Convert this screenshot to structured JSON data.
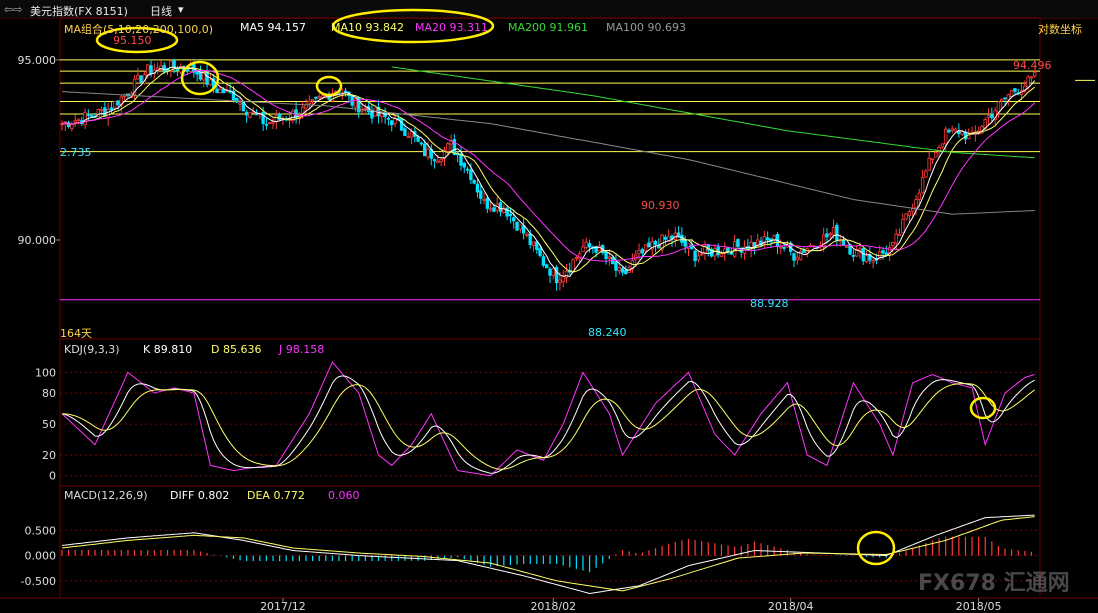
{
  "top_bar": {
    "symbol_title": "美元指数(FX 8151)",
    "period": "日线",
    "dropdown_glyph": "▾"
  },
  "main_panel": {
    "ma_label": "MA组合(5,10,20,200,100,0)",
    "ma5": "MA5 94.157",
    "ma10": "MA10 93.842",
    "ma20": "MA20 93.311",
    "ma200": "MA200 91.961",
    "ma100": "MA100 90.693",
    "log_scale_label": "对数坐标",
    "days_label": "164天",
    "annotations": {
      "high1": "95.150",
      "left_price": "2.735",
      "mid_high": "90.930",
      "low1": "88.240",
      "low2": "88.928",
      "last": "94.496"
    }
  },
  "kdj_panel": {
    "label": "KDJ(9,3,3)",
    "k": "K 89.810",
    "d": "D 85.636",
    "j": "J 98.158"
  },
  "macd_panel": {
    "label": "MACD(12,26,9)",
    "diff": "DIFF 0.802",
    "dea": "DEA 0.772",
    "macd": "0.060"
  },
  "watermark": "FX678 汇通网",
  "colors": {
    "up": "#ff3b3b",
    "down": "#00e0ff",
    "ma5": "#ffffff",
    "ma10": "#ffff66",
    "ma20": "#ff33ff",
    "ma200": "#33dd33",
    "ma100": "#888888",
    "hline_yellow": "#ffff55",
    "hline_magenta": "#ff33ff",
    "circle": "#ffee00"
  },
  "chart_data": [
    {
      "type": "candlestick",
      "scale": "log",
      "x_ticks": [
        "2017/12",
        "2018/02",
        "2018/04",
        "2018/05"
      ],
      "y_ticks": [
        95.0,
        90.0
      ],
      "y_tick_labels": [
        "95.000",
        "90.000"
      ],
      "ylim": [
        87.6,
        95.8
      ],
      "horizontal_levels": [
        {
          "value": 95.0,
          "color": "yellow"
        },
        {
          "value": 94.68,
          "color": "yellow"
        },
        {
          "value": 94.34,
          "color": "yellow"
        },
        {
          "value": 93.82,
          "color": "yellow"
        },
        {
          "value": 93.47,
          "color": "yellow"
        },
        {
          "value": 92.42,
          "color": "yellow"
        },
        {
          "value": 88.4,
          "color": "magenta"
        }
      ],
      "annotated_values": {
        "high": 95.15,
        "mid_high": 90.93,
        "low": 88.24,
        "low2": 88.928,
        "last": 94.496
      },
      "path_closes": [
        [
          0,
          93.2
        ],
        [
          8,
          93.4
        ],
        [
          14,
          93.6
        ],
        [
          20,
          94.1
        ],
        [
          26,
          94.7
        ],
        [
          32,
          94.8
        ],
        [
          38,
          94.8
        ],
        [
          42,
          94.6
        ],
        [
          46,
          94.2
        ],
        [
          52,
          94.0
        ],
        [
          56,
          93.6
        ],
        [
          62,
          93.2
        ],
        [
          68,
          93.4
        ],
        [
          74,
          93.6
        ],
        [
          80,
          94.0
        ],
        [
          84,
          94.2
        ],
        [
          88,
          93.8
        ],
        [
          94,
          93.5
        ],
        [
          100,
          93.3
        ],
        [
          106,
          92.9
        ],
        [
          110,
          92.4
        ],
        [
          114,
          92.3
        ],
        [
          118,
          92.6
        ],
        [
          124,
          91.8
        ],
        [
          128,
          91.0
        ],
        [
          134,
          90.9
        ],
        [
          140,
          90.2
        ],
        [
          146,
          89.4
        ],
        [
          150,
          89.0
        ],
        [
          154,
          89.3
        ],
        [
          158,
          89.8
        ],
        [
          162,
          89.8
        ],
        [
          166,
          89.4
        ],
        [
          170,
          89.0
        ],
        [
          174,
          89.5
        ],
        [
          180,
          89.9
        ],
        [
          186,
          90.1
        ],
        [
          192,
          89.6
        ],
        [
          198,
          89.7
        ],
        [
          204,
          89.8
        ],
        [
          210,
          89.9
        ],
        [
          216,
          90.0
        ],
        [
          222,
          89.6
        ],
        [
          228,
          89.9
        ],
        [
          234,
          90.2
        ],
        [
          240,
          89.7
        ],
        [
          246,
          89.5
        ],
        [
          252,
          89.8
        ],
        [
          256,
          90.6
        ],
        [
          260,
          91.4
        ],
        [
          264,
          92.3
        ],
        [
          268,
          92.9
        ],
        [
          272,
          93.0
        ],
        [
          276,
          92.8
        ],
        [
          280,
          93.3
        ],
        [
          284,
          93.7
        ],
        [
          288,
          94.1
        ],
        [
          292,
          94.3
        ],
        [
          295,
          94.5
        ]
      ],
      "ma200_path": [
        [
          100,
          94.8
        ],
        [
          160,
          94.0
        ],
        [
          220,
          93.0
        ],
        [
          270,
          92.4
        ],
        [
          295,
          92.25
        ]
      ],
      "ma100_path": [
        [
          0,
          94.1
        ],
        [
          40,
          93.9
        ],
        [
          80,
          93.7
        ],
        [
          130,
          93.2
        ],
        [
          190,
          92.2
        ],
        [
          240,
          91.1
        ],
        [
          270,
          90.7
        ],
        [
          295,
          90.8
        ]
      ]
    },
    {
      "type": "line",
      "name": "KDJ(9,3,3)",
      "y_ticks": [
        100,
        80,
        50,
        20,
        0
      ],
      "ylim": [
        -8,
        112
      ],
      "series": [
        {
          "name": "K",
          "values_at_end": 89.81
        },
        {
          "name": "D",
          "values_at_end": 85.636
        },
        {
          "name": "J",
          "values_at_end": 98.158
        }
      ],
      "j_path": [
        [
          0,
          60
        ],
        [
          10,
          30
        ],
        [
          20,
          100
        ],
        [
          28,
          80
        ],
        [
          34,
          85
        ],
        [
          40,
          80
        ],
        [
          45,
          10
        ],
        [
          52,
          5
        ],
        [
          58,
          8
        ],
        [
          65,
          10
        ],
        [
          75,
          60
        ],
        [
          82,
          110
        ],
        [
          90,
          80
        ],
        [
          96,
          20
        ],
        [
          100,
          10
        ],
        [
          106,
          30
        ],
        [
          112,
          60
        ],
        [
          120,
          5
        ],
        [
          130,
          0
        ],
        [
          138,
          25
        ],
        [
          146,
          15
        ],
        [
          152,
          50
        ],
        [
          158,
          100
        ],
        [
          166,
          60
        ],
        [
          170,
          20
        ],
        [
          180,
          70
        ],
        [
          190,
          100
        ],
        [
          198,
          40
        ],
        [
          204,
          20
        ],
        [
          212,
          60
        ],
        [
          220,
          90
        ],
        [
          226,
          20
        ],
        [
          232,
          10
        ],
        [
          240,
          90
        ],
        [
          248,
          50
        ],
        [
          252,
          20
        ],
        [
          258,
          90
        ],
        [
          264,
          98
        ],
        [
          270,
          90
        ],
        [
          276,
          85
        ],
        [
          280,
          30
        ],
        [
          286,
          80
        ],
        [
          292,
          95
        ],
        [
          295,
          98
        ]
      ]
    },
    {
      "type": "bar",
      "name": "MACD(12,26,9)",
      "y_ticks": [
        0.5,
        0.0,
        -0.5
      ],
      "y_tick_labels": [
        "0.500",
        "0.000",
        "-0.500"
      ],
      "ylim": [
        -0.8,
        1.0
      ],
      "series": [
        {
          "name": "DIFF",
          "values_at_end": 0.802
        },
        {
          "name": "DEA",
          "values_at_end": 0.772
        },
        {
          "name": "MACD",
          "values_at_end": 0.06
        }
      ],
      "diff_path": [
        [
          0,
          0.2
        ],
        [
          20,
          0.35
        ],
        [
          40,
          0.45
        ],
        [
          55,
          0.3
        ],
        [
          70,
          0.1
        ],
        [
          90,
          0.0
        ],
        [
          105,
          -0.05
        ],
        [
          120,
          -0.1
        ],
        [
          140,
          -0.4
        ],
        [
          160,
          -0.75
        ],
        [
          175,
          -0.6
        ],
        [
          190,
          -0.2
        ],
        [
          210,
          0.1
        ],
        [
          230,
          0.05
        ],
        [
          250,
          0.0
        ],
        [
          265,
          0.4
        ],
        [
          280,
          0.75
        ],
        [
          295,
          0.8
        ]
      ],
      "dea_path": [
        [
          0,
          0.15
        ],
        [
          20,
          0.3
        ],
        [
          40,
          0.4
        ],
        [
          55,
          0.35
        ],
        [
          70,
          0.15
        ],
        [
          90,
          0.05
        ],
        [
          110,
          -0.02
        ],
        [
          130,
          -0.15
        ],
        [
          150,
          -0.5
        ],
        [
          170,
          -0.7
        ],
        [
          185,
          -0.45
        ],
        [
          205,
          -0.05
        ],
        [
          225,
          0.05
        ],
        [
          250,
          0.02
        ],
        [
          268,
          0.3
        ],
        [
          285,
          0.7
        ],
        [
          295,
          0.77
        ]
      ]
    }
  ]
}
